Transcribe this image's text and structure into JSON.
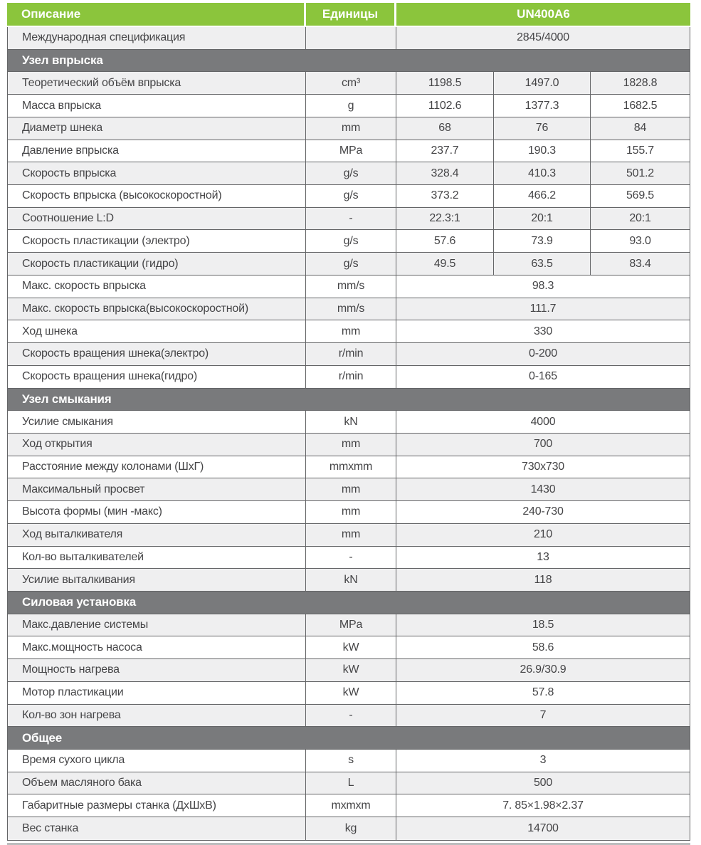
{
  "header": {
    "description": "Описание",
    "units": "Единицы",
    "model": "UN400A6"
  },
  "table": {
    "sections": [
      {
        "title": "",
        "rows": [
          {
            "label": "Международная спецификация",
            "unit": "",
            "values": [
              "2845/4000"
            ],
            "shade": "g"
          }
        ]
      },
      {
        "title": "Узел впрыска",
        "rows": [
          {
            "label": "Теоретический объём впрыска",
            "unit": "cm³",
            "values": [
              "1198.5",
              "1497.0",
              "1828.8"
            ],
            "shade": "g"
          },
          {
            "label": "Масса впрыска",
            "unit": "g",
            "values": [
              "1102.6",
              "1377.3",
              "1682.5"
            ],
            "shade": "w"
          },
          {
            "label": "Диаметр шнека",
            "unit": "mm",
            "values": [
              "68",
              "76",
              "84"
            ],
            "shade": "g"
          },
          {
            "label": "Давление впрыска",
            "unit": "MPa",
            "values": [
              "237.7",
              "190.3",
              "155.7"
            ],
            "shade": "w"
          },
          {
            "label": "Скорость впрыска",
            "unit": "g/s",
            "values": [
              "328.4",
              "410.3",
              "501.2"
            ],
            "shade": "g"
          },
          {
            "label": "Скорость впрыска (высокоскоростной)",
            "unit": "g/s",
            "values": [
              "373.2",
              "466.2",
              "569.5"
            ],
            "shade": "w"
          },
          {
            "label": "Соотношение L:D",
            "unit": "-",
            "values": [
              "22.3:1",
              "20:1",
              "20:1"
            ],
            "shade": "g"
          },
          {
            "label": "Скорость пластикации (электро)",
            "unit": "g/s",
            "values": [
              "57.6",
              "73.9",
              "93.0"
            ],
            "shade": "w"
          },
          {
            "label": "Скорость пластикации (гидро)",
            "unit": "g/s",
            "values": [
              "49.5",
              "63.5",
              "83.4"
            ],
            "shade": "g"
          },
          {
            "label": "Макс. скорость впрыска",
            "unit": "mm/s",
            "values": [
              "98.3"
            ],
            "shade": "w"
          },
          {
            "label": "Макс. скорость впрыска(высокоскоростной)",
            "unit": "mm/s",
            "values": [
              "111.7"
            ],
            "shade": "g"
          },
          {
            "label": "Ход шнека",
            "unit": "mm",
            "values": [
              "330"
            ],
            "shade": "w"
          },
          {
            "label": "Скорость вращения шнека(электро)",
            "unit": "r/min",
            "values": [
              "0-200"
            ],
            "shade": "g"
          },
          {
            "label": "Скорость вращения шнека(гидро)",
            "unit": "r/min",
            "values": [
              "0-165"
            ],
            "shade": "w"
          }
        ]
      },
      {
        "title": "Узел смыкания",
        "rows": [
          {
            "label": "Усилие смыкания",
            "unit": "kN",
            "values": [
              "4000"
            ],
            "shade": "w"
          },
          {
            "label": "Ход открытия",
            "unit": "mm",
            "values": [
              "700"
            ],
            "shade": "g"
          },
          {
            "label": "Расстояние между колонами (ШхГ)",
            "unit": "mmxmm",
            "values": [
              "730x730"
            ],
            "shade": "w"
          },
          {
            "label": "Максимальный просвет",
            "unit": "mm",
            "values": [
              "1430"
            ],
            "shade": "g"
          },
          {
            "label": "Высота формы (мин -макс)",
            "unit": "mm",
            "values": [
              "240-730"
            ],
            "shade": "w"
          },
          {
            "label": "Ход выталкивателя",
            "unit": "mm",
            "values": [
              "210"
            ],
            "shade": "g"
          },
          {
            "label": "Кол-во выталкивателей",
            "unit": "-",
            "values": [
              "13"
            ],
            "shade": "w"
          },
          {
            "label": "Усилие выталкивания",
            "unit": "kN",
            "values": [
              "118"
            ],
            "shade": "g"
          }
        ]
      },
      {
        "title": "Силовая установка",
        "rows": [
          {
            "label": "Макс.давление системы",
            "unit": "MPa",
            "values": [
              "18.5"
            ],
            "shade": "g"
          },
          {
            "label": "Макс.мощность насоса",
            "unit": "kW",
            "values": [
              "58.6"
            ],
            "shade": "w"
          },
          {
            "label": "Мощность нагрева",
            "unit": "kW",
            "values": [
              "26.9/30.9"
            ],
            "shade": "g"
          },
          {
            "label": "Мотор пластикации",
            "unit": "kW",
            "values": [
              "57.8"
            ],
            "shade": "w"
          },
          {
            "label": "Кол-во зон нагрева",
            "unit": "-",
            "values": [
              "7"
            ],
            "shade": "g"
          }
        ]
      },
      {
        "title": "Общее",
        "rows": [
          {
            "label": "Время сухого цикла",
            "unit": "s",
            "values": [
              "3"
            ],
            "shade": "w"
          },
          {
            "label": "Объем масляного бака",
            "unit": "L",
            "values": [
              "500"
            ],
            "shade": "g"
          },
          {
            "label": "Габаритные размеры станка (ДхШхВ)",
            "unit": "mxmxm",
            "values": [
              "7. 85×1.98×2.37"
            ],
            "shade": "w"
          },
          {
            "label": "Вес станка",
            "unit": "kg",
            "values": [
              "14700"
            ],
            "shade": "g"
          }
        ]
      }
    ]
  },
  "colors": {
    "accent_green": "#8bc53c",
    "section_gray": "#797a7c",
    "row_gray": "#efeff0",
    "border": "#646567",
    "text": "#454547"
  }
}
